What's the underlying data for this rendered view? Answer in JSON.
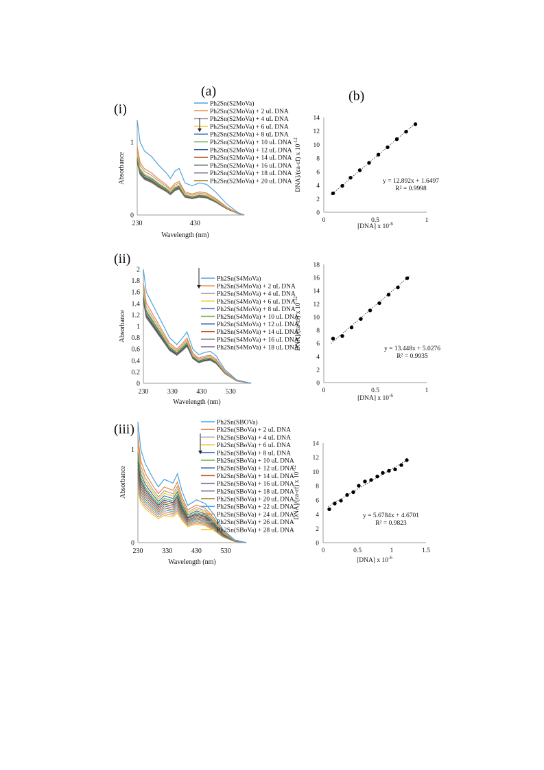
{
  "labels": {
    "a": "(a)",
    "b": "(b)",
    "i": "(i)",
    "ii": "(ii)",
    "iii": "(iii)"
  },
  "colors": [
    "#4aa3df",
    "#f0823a",
    "#a6a6a6",
    "#f6c228",
    "#3d6fb4",
    "#6dad45",
    "#1f4e8c",
    "#b35a1f",
    "#5f6b70",
    "#8c6d9c",
    "#a07d12"
  ],
  "chart_data": [
    {
      "id": "a-i",
      "type": "line",
      "xlabel": "Wavelength (nm)",
      "ylabel": "Absorbance",
      "xlim": [
        230,
        600
      ],
      "ylim": [
        0,
        1.3
      ],
      "x_ticks": [
        {
          "v": 230,
          "label": "230"
        },
        {
          "v": 430,
          "label": "430"
        }
      ],
      "y_ticks": [
        {
          "v": 0,
          "label": "0"
        },
        {
          "v": 1,
          "label": "1"
        }
      ],
      "legend": [
        "Ph2Sn(S2MoVa)",
        "Ph2Sn(S2MoVa) + 2 uL DNA",
        "Ph2Sn(S2MoVa) + 4 uL DNA",
        "Ph2Sn(S2MoVa) + 6 uL DNA",
        "Ph2Sn(S2MoVa) + 8 uL DNA",
        "Ph2Sn(S2MoVa) + 10 uL DNA",
        "Ph2Sn(S2MoVa) + 12 uL DNA",
        "Ph2Sn(S2MoVa) + 14 uL DNA",
        "Ph2Sn(S2MoVa) + 16 uL DNA",
        "Ph2Sn(S2MoVa) + 18 uL DNA",
        "Ph2Sn(S2MoVa) + 20 uL DNA"
      ],
      "x": [
        230,
        240,
        255,
        280,
        305,
        330,
        345,
        360,
        375,
        395,
        420,
        445,
        470,
        500,
        540,
        580,
        600
      ],
      "base": [
        1.3,
        1.0,
        0.88,
        0.8,
        0.68,
        0.58,
        0.5,
        0.6,
        0.64,
        0.44,
        0.4,
        0.44,
        0.42,
        0.32,
        0.15,
        0.03,
        0.0
      ],
      "scale": [
        1.0,
        0.72,
        0.68,
        0.64,
        0.62,
        0.6,
        0.59,
        0.58,
        0.57,
        0.56,
        0.555
      ]
    },
    {
      "id": "b-i",
      "type": "scatter",
      "xlabel": "[DNA] x 10",
      "xlabel_sup": "-6",
      "ylabel": "DNA]/(εa-εf) x 10",
      "ylabel_sup": "-12",
      "xlim": [
        0,
        1
      ],
      "ylim": [
        0,
        14
      ],
      "x_ticks": [
        {
          "v": 0,
          "label": "0"
        },
        {
          "v": 0.5,
          "label": "0.5"
        },
        {
          "v": 1,
          "label": "1"
        }
      ],
      "y_ticks": [
        {
          "v": 0,
          "label": "0"
        },
        {
          "v": 2,
          "label": "2"
        },
        {
          "v": 4,
          "label": "4"
        },
        {
          "v": 6,
          "label": "6"
        },
        {
          "v": 8,
          "label": "8"
        },
        {
          "v": 10,
          "label": "10"
        },
        {
          "v": 12,
          "label": "12"
        },
        {
          "v": 14,
          "label": "14"
        }
      ],
      "x": [
        0.09,
        0.18,
        0.26,
        0.35,
        0.44,
        0.53,
        0.62,
        0.71,
        0.8,
        0.89
      ],
      "y": [
        2.8,
        3.9,
        5.1,
        6.2,
        7.3,
        8.5,
        9.6,
        10.8,
        11.9,
        13.0
      ],
      "trend": {
        "slope": 12.892,
        "intercept": 1.6497
      },
      "equation": "y = 12.892x + 1.6497",
      "r2": "R² = 0.9998"
    },
    {
      "id": "a-ii",
      "type": "line",
      "xlabel": "Wavelength (nm)",
      "ylabel": "Absorbance",
      "xlim": [
        230,
        600
      ],
      "ylim": [
        0,
        2
      ],
      "x_ticks": [
        {
          "v": 230,
          "label": "230"
        },
        {
          "v": 330,
          "label": "330"
        },
        {
          "v": 430,
          "label": "430"
        },
        {
          "v": 530,
          "label": "530"
        }
      ],
      "y_ticks": [
        {
          "v": 0,
          "label": "0"
        },
        {
          "v": 0.2,
          "label": "0.2"
        },
        {
          "v": 0.4,
          "label": "0.4"
        },
        {
          "v": 0.6,
          "label": "0.6"
        },
        {
          "v": 0.8,
          "label": "0.8"
        },
        {
          "v": 1,
          "label": "1"
        },
        {
          "v": 1.2,
          "label": "1.2"
        },
        {
          "v": 1.4,
          "label": "1.4"
        },
        {
          "v": 1.6,
          "label": "1.6"
        },
        {
          "v": 1.8,
          "label": "1.8"
        },
        {
          "v": 2,
          "label": "2"
        }
      ],
      "legend": [
        "Ph2Sn(S4MoVa)",
        "Ph2Sn(S4MoVa) + 2 uL DNA",
        "Ph2Sn(S4MoVa) + 4 uL DNA",
        "Ph2Sn(S4MoVa) + 6 uL DNA",
        "Ph2Sn(S4MoVa) + 8 uL DNA",
        "Ph2Sn(S4MoVa) + 10 uL DNA",
        "Ph2Sn(S4MoVa) + 12 uL DNA",
        "Ph2Sn(S4MoVa) + 14 uL DNA",
        "Ph2Sn(S4MoVa) + 16 uL DNA",
        "Ph2Sn(S4MoVa) + 18 uL DNA"
      ],
      "x": [
        230,
        240,
        260,
        290,
        320,
        345,
        365,
        380,
        400,
        420,
        440,
        460,
        480,
        510,
        550,
        600
      ],
      "base": [
        2.0,
        1.6,
        1.4,
        1.1,
        0.8,
        0.68,
        0.8,
        0.9,
        0.6,
        0.5,
        0.54,
        0.56,
        0.48,
        0.24,
        0.06,
        0.0
      ],
      "scale": [
        1.0,
        0.88,
        0.84,
        0.81,
        0.79,
        0.77,
        0.75,
        0.74,
        0.73,
        0.72
      ]
    },
    {
      "id": "b-ii",
      "type": "scatter",
      "xlabel": "[DNA] x 10",
      "xlabel_sup": "-6",
      "ylabel": "DNA]/(εa-εf) x 10",
      "ylabel_sup": "-12",
      "xlim": [
        0,
        1
      ],
      "ylim": [
        0,
        18
      ],
      "x_ticks": [
        {
          "v": 0,
          "label": "0"
        },
        {
          "v": 0.5,
          "label": "0.5"
        },
        {
          "v": 1,
          "label": "1"
        }
      ],
      "y_ticks": [
        {
          "v": 0,
          "label": "0"
        },
        {
          "v": 2,
          "label": "2"
        },
        {
          "v": 4,
          "label": "4"
        },
        {
          "v": 6,
          "label": "6"
        },
        {
          "v": 8,
          "label": "8"
        },
        {
          "v": 10,
          "label": "10"
        },
        {
          "v": 12,
          "label": "12"
        },
        {
          "v": 14,
          "label": "14"
        },
        {
          "v": 16,
          "label": "16"
        },
        {
          "v": 18,
          "label": "18"
        }
      ],
      "x": [
        0.09,
        0.18,
        0.27,
        0.36,
        0.45,
        0.54,
        0.63,
        0.72,
        0.81
      ],
      "y": [
        6.7,
        7.1,
        8.4,
        9.7,
        11.0,
        12.1,
        13.4,
        14.5,
        15.9
      ],
      "trend": {
        "slope": 13.448,
        "intercept": 5.0276
      },
      "equation": "y = 13.448x + 5.0276",
      "r2": "R² = 0.9935"
    },
    {
      "id": "a-iii",
      "type": "line",
      "xlabel": "Wavelength (nm)",
      "ylabel": "Absorbance",
      "xlim": [
        230,
        600
      ],
      "ylim": [
        0,
        1.3
      ],
      "x_ticks": [
        {
          "v": 230,
          "label": "230"
        },
        {
          "v": 330,
          "label": "330"
        },
        {
          "v": 430,
          "label": "430"
        },
        {
          "v": 530,
          "label": "530"
        }
      ],
      "y_ticks": [
        {
          "v": 0,
          "label": "0"
        },
        {
          "v": 1,
          "label": "1"
        }
      ],
      "legend": [
        "Ph2Sn(SBOVa)",
        "Ph2Sn(SBoVa) + 2 uL DNA",
        "Ph2Sn(SBoVa) + 4 uL DNA",
        "Ph2Sn(SBoVa) + 6 uL DNA",
        "Ph2Sn(SBoVa) + 8 uL DNA",
        "Ph2Sn(SBoVa) + 10 uL DNA",
        "Ph2Sn(SBoVa) + 12 uL DNA",
        "Ph2Sn(SBoVa) + 14 uL DNA",
        "Ph2Sn(SBoVa) + 16 uL DNA",
        "Ph2Sn(SBoVa) + 18 uL DNA",
        "Ph2Sn(SBoVa) + 20 uL DNA",
        "Ph2Sn(SBoVa) + 22 uL DNA",
        "Ph2Sn(SBoVa) + 24 uL DNA",
        "Ph2Sn(SBoVa) + 26 uL DNA",
        "Ph2Sn(SBoVa) + 28 uL DNA"
      ],
      "x": [
        230,
        240,
        255,
        280,
        300,
        320,
        335,
        350,
        365,
        380,
        400,
        430,
        460,
        490,
        520,
        560,
        600
      ],
      "base": [
        1.3,
        1.0,
        0.85,
        0.7,
        0.6,
        0.68,
        0.66,
        0.64,
        0.74,
        0.56,
        0.4,
        0.46,
        0.42,
        0.3,
        0.14,
        0.03,
        0.0
      ],
      "scale": [
        1.0,
        0.88,
        0.82,
        0.78,
        0.74,
        0.7,
        0.67,
        0.64,
        0.61,
        0.58,
        0.55,
        0.52,
        0.49,
        0.46,
        0.43
      ]
    },
    {
      "id": "b-iii",
      "type": "scatter",
      "xlabel": "[DNA] x 10",
      "xlabel_sup": "-6",
      "ylabel": "DNA]/(εa-εf) x 10",
      "ylabel_sup": "-12",
      "xlim": [
        0,
        1.5
      ],
      "ylim": [
        0,
        14
      ],
      "x_ticks": [
        {
          "v": 0,
          "label": "0"
        },
        {
          "v": 0.5,
          "label": "0.5"
        },
        {
          "v": 1,
          "label": "1"
        },
        {
          "v": 1.5,
          "label": "1.5"
        }
      ],
      "y_ticks": [
        {
          "v": 0,
          "label": "0"
        },
        {
          "v": 2,
          "label": "2"
        },
        {
          "v": 4,
          "label": "4"
        },
        {
          "v": 6,
          "label": "6"
        },
        {
          "v": 8,
          "label": "8"
        },
        {
          "v": 10,
          "label": "10"
        },
        {
          "v": 12,
          "label": "12"
        },
        {
          "v": 14,
          "label": "14"
        }
      ],
      "x": [
        0.09,
        0.17,
        0.26,
        0.35,
        0.44,
        0.52,
        0.61,
        0.7,
        0.79,
        0.87,
        0.96,
        1.05,
        1.14,
        1.22
      ],
      "y": [
        4.7,
        5.5,
        5.9,
        6.7,
        7.1,
        8.0,
        8.6,
        8.8,
        9.3,
        9.8,
        10.1,
        10.3,
        10.9,
        11.6
      ],
      "trend": {
        "slope": 5.6784,
        "intercept": 4.6701
      },
      "equation": "y = 5.6784x + 4.6701",
      "r2": "R² = 0.9823"
    }
  ]
}
